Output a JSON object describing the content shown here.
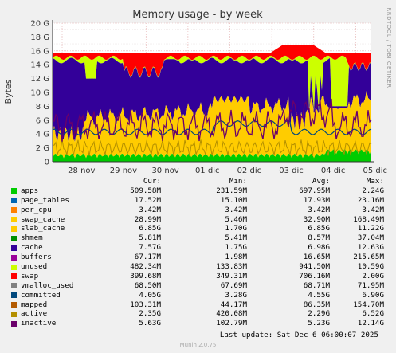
{
  "chart_data": {
    "type": "area",
    "title": "Memory usage - by week",
    "ylabel": "Bytes",
    "side_label": "RRDTOOL / TOBI OETIKER",
    "ylim": [
      0,
      20
    ],
    "yticks": [
      "0",
      "2 G",
      "4 G",
      "6 G",
      "8 G",
      "10 G",
      "12 G",
      "14 G",
      "16 G",
      "18 G",
      "20 G"
    ],
    "x_ticks": [
      "28 nov",
      "29 nov",
      "30 nov",
      "01 dic",
      "02 dic",
      "03 dic",
      "04 dic",
      "05 dic"
    ],
    "grid": true,
    "legend_headers": [
      "Cur:",
      "Min:",
      "Avg:",
      "Max:"
    ],
    "series": [
      {
        "name": "apps",
        "color": "#00cc00",
        "cur": "509.58M",
        "min": "231.59M",
        "avg": "697.95M",
        "max": "2.24G"
      },
      {
        "name": "page_tables",
        "color": "#0066b3",
        "cur": "17.52M",
        "min": "15.10M",
        "avg": "17.93M",
        "max": "23.16M"
      },
      {
        "name": "per_cpu",
        "color": "#ff8000",
        "cur": "3.42M",
        "min": "3.42M",
        "avg": "3.42M",
        "max": "3.42M"
      },
      {
        "name": "swap_cache",
        "color": "#ffcc00",
        "cur": "28.99M",
        "min": "5.46M",
        "avg": "32.90M",
        "max": "168.49M"
      },
      {
        "name": "slab_cache",
        "color": "#ffcc00",
        "cur": "6.85G",
        "min": "1.70G",
        "avg": "6.85G",
        "max": "11.22G"
      },
      {
        "name": "shmem",
        "color": "#008f00",
        "cur": "5.81M",
        "min": "5.41M",
        "avg": "8.57M",
        "max": "37.04M"
      },
      {
        "name": "cache",
        "color": "#330099",
        "cur": "7.57G",
        "min": "1.75G",
        "avg": "6.98G",
        "max": "12.63G"
      },
      {
        "name": "buffers",
        "color": "#990099",
        "cur": "67.17M",
        "min": "1.98M",
        "avg": "16.65M",
        "max": "215.65M"
      },
      {
        "name": "unused",
        "color": "#ccff00",
        "cur": "482.34M",
        "min": "133.83M",
        "avg": "941.50M",
        "max": "10.59G"
      },
      {
        "name": "swap",
        "color": "#ff0000",
        "cur": "399.68M",
        "min": "349.31M",
        "avg": "706.16M",
        "max": "2.00G"
      },
      {
        "name": "vmalloc_used",
        "color": "#808080",
        "cur": "68.50M",
        "min": "67.69M",
        "avg": "68.71M",
        "max": "71.95M"
      },
      {
        "name": "committed",
        "color": "#00487d",
        "cur": "4.05G",
        "min": "3.28G",
        "avg": "4.55G",
        "max": "6.90G"
      },
      {
        "name": "mapped",
        "color": "#b35a00",
        "cur": "103.31M",
        "min": "44.17M",
        "avg": "86.35M",
        "max": "154.70M"
      },
      {
        "name": "active",
        "color": "#b38f00",
        "cur": "2.35G",
        "min": "420.08M",
        "avg": "2.29G",
        "max": "6.52G"
      },
      {
        "name": "inactive",
        "color": "#6b006b",
        "cur": "5.63G",
        "min": "102.79M",
        "avg": "5.23G",
        "max": "12.14G"
      }
    ]
  },
  "footer": {
    "last_update": "Last update: Sat Dec  6 06:00:07 2025",
    "version": "Munin 2.0.75"
  }
}
